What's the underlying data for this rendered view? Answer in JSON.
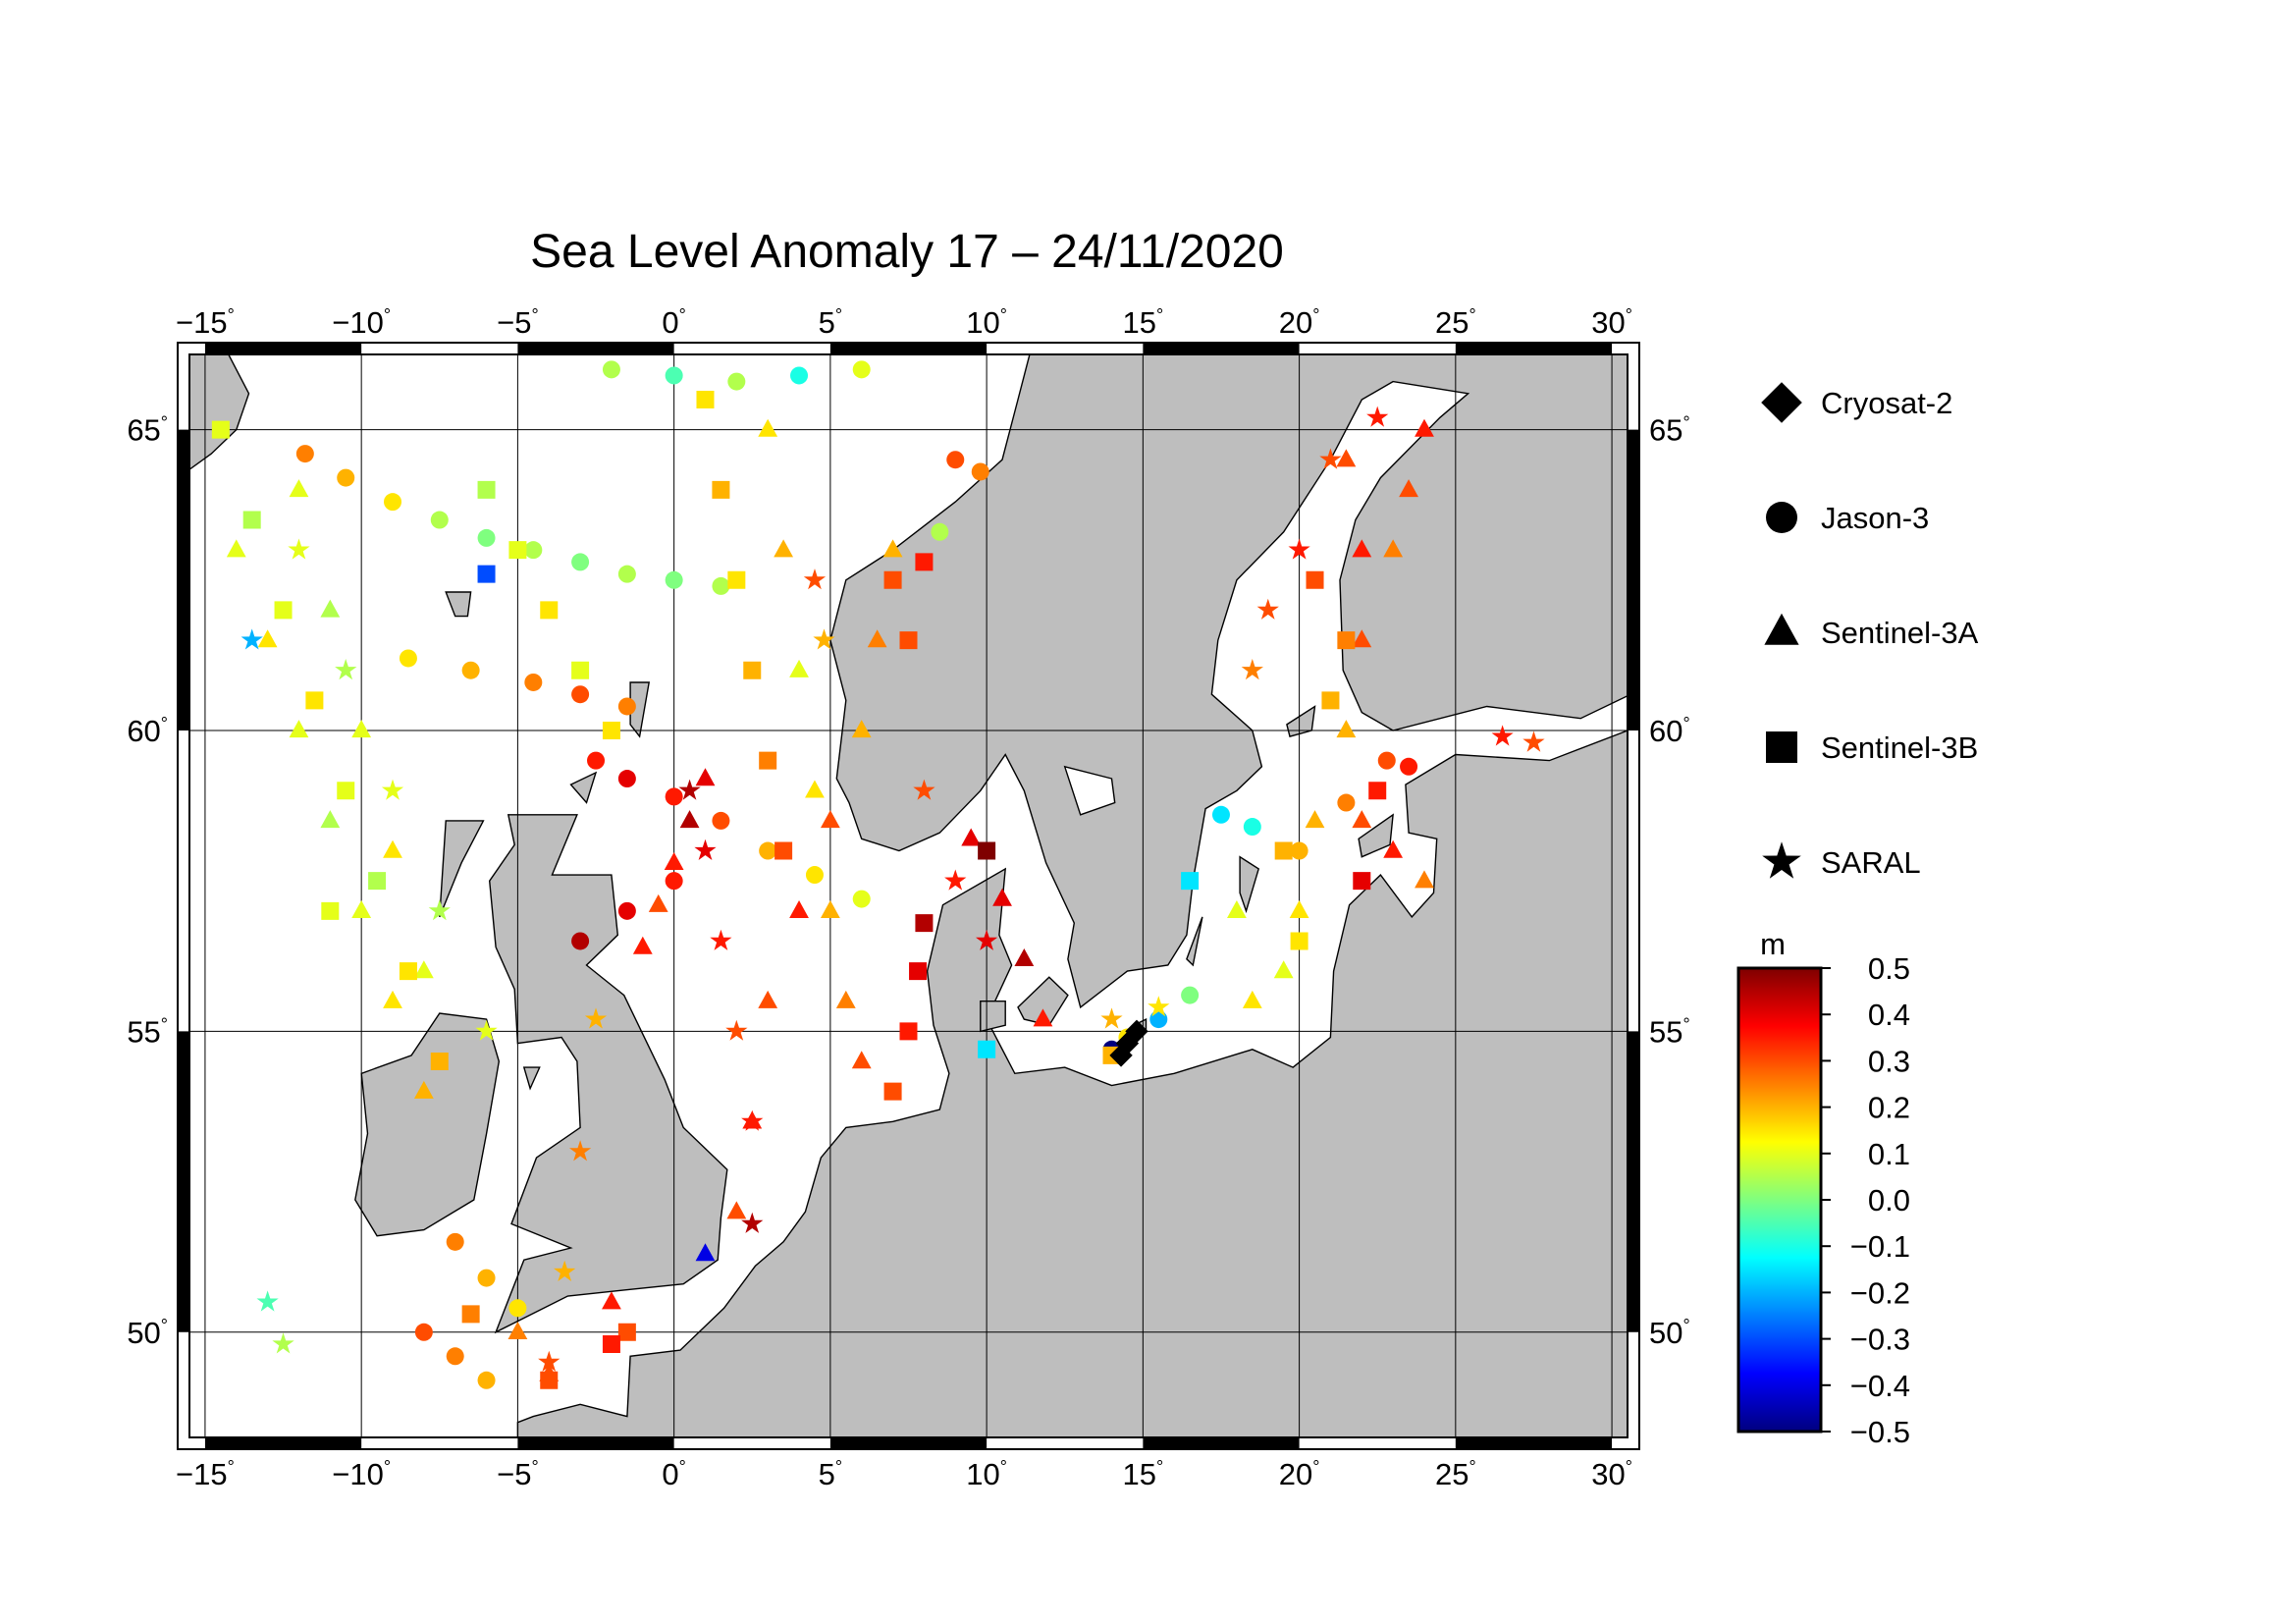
{
  "title": "Sea Level Anomaly 17 – 24/11/2020",
  "map": {
    "lon_range": [
      -15.5,
      30.5
    ],
    "lat_range": [
      48.25,
      66.25
    ],
    "lon_ticks": [
      {
        "value": -15,
        "label": "−15"
      },
      {
        "value": -10,
        "label": "−10"
      },
      {
        "value": -5,
        "label": "−5"
      },
      {
        "value": 0,
        "label": "0"
      },
      {
        "value": 5,
        "label": "5"
      },
      {
        "value": 10,
        "label": "10"
      },
      {
        "value": 15,
        "label": "15"
      },
      {
        "value": 20,
        "label": "20"
      },
      {
        "value": 25,
        "label": "25"
      },
      {
        "value": 30,
        "label": "30"
      }
    ],
    "lat_ticks": [
      {
        "value": 50,
        "label": "50"
      },
      {
        "value": 55,
        "label": "55"
      },
      {
        "value": 60,
        "label": "60"
      },
      {
        "value": 65,
        "label": "65"
      }
    ],
    "degree_symbol": "°",
    "land_color": "#bebebe",
    "sea_color": "#ffffff",
    "grid": true
  },
  "legend": {
    "items": [
      {
        "label": "Cryosat-2",
        "marker": "diamond"
      },
      {
        "label": "Jason-3",
        "marker": "circle"
      },
      {
        "label": "Sentinel-3A",
        "marker": "triangle"
      },
      {
        "label": "Sentinel-3B",
        "marker": "square"
      },
      {
        "label": "SARAL",
        "marker": "star"
      }
    ]
  },
  "colorbar": {
    "unit": "m",
    "min": -0.5,
    "max": 0.5,
    "ticks": [
      "0.5",
      "0.4",
      "0.3",
      "0.2",
      "0.1",
      "0.0",
      "−0.1",
      "−0.2",
      "−0.3",
      "−0.4",
      "−0.5"
    ],
    "colors": [
      "#00007f",
      "#0000ff",
      "#007fff",
      "#00ffff",
      "#7fff7f",
      "#ffff00",
      "#ff7f00",
      "#ff0000",
      "#7f0000"
    ]
  },
  "chart_data": {
    "type": "scatter",
    "x_label": "",
    "y_label": "",
    "series": [
      {
        "name": "Jason-3",
        "marker": "circle",
        "points": [
          [
            -11.8,
            64.6,
            0.25
          ],
          [
            -10.5,
            64.2,
            0.2
          ],
          [
            -9,
            63.8,
            0.15
          ],
          [
            -7.5,
            63.5,
            0.05
          ],
          [
            -6,
            63.2,
            0.0
          ],
          [
            -4.5,
            63.0,
            0.05
          ],
          [
            -3,
            62.8,
            0.0
          ],
          [
            -1.5,
            62.6,
            0.05
          ],
          [
            0,
            62.5,
            0.0
          ],
          [
            1.5,
            62.4,
            0.05
          ],
          [
            -8.5,
            61.2,
            0.15
          ],
          [
            -6.5,
            61.0,
            0.2
          ],
          [
            -4.5,
            60.8,
            0.25
          ],
          [
            -3,
            60.6,
            0.3
          ],
          [
            -1.5,
            60.4,
            0.25
          ],
          [
            -2.5,
            59.5,
            0.35
          ],
          [
            -1.5,
            59.2,
            0.4
          ],
          [
            0,
            58.9,
            0.35
          ],
          [
            1.5,
            58.5,
            0.3
          ],
          [
            3,
            58.0,
            0.2
          ],
          [
            4.5,
            57.6,
            0.15
          ],
          [
            6,
            57.2,
            0.1
          ],
          [
            -3,
            56.5,
            0.45
          ],
          [
            -1.5,
            57.0,
            0.4
          ],
          [
            0,
            57.5,
            0.35
          ],
          [
            -7,
            51.5,
            0.25
          ],
          [
            -6,
            50.9,
            0.2
          ],
          [
            -5,
            50.4,
            0.15
          ],
          [
            -8,
            50.0,
            0.3
          ],
          [
            -7,
            49.6,
            0.25
          ],
          [
            -6,
            49.2,
            0.2
          ],
          [
            9,
            64.5,
            0.3
          ],
          [
            9.8,
            64.3,
            0.25
          ],
          [
            8.5,
            63.3,
            0.05
          ],
          [
            17.5,
            58.6,
            -0.15
          ],
          [
            18.5,
            58.4,
            -0.1
          ],
          [
            20,
            58.0,
            0.2
          ],
          [
            21.5,
            58.8,
            0.25
          ],
          [
            22.8,
            59.5,
            0.3
          ],
          [
            23.5,
            59.4,
            0.35
          ],
          [
            14,
            54.7,
            -0.5
          ],
          [
            14.5,
            54.9,
            0.15
          ],
          [
            15.5,
            55.2,
            -0.2
          ],
          [
            16.5,
            55.6,
            0.0
          ],
          [
            -2,
            66.0,
            0.05
          ],
          [
            0,
            65.9,
            -0.05
          ],
          [
            2,
            65.8,
            0.05
          ],
          [
            4,
            65.9,
            -0.1
          ],
          [
            6,
            66.0,
            0.1
          ]
        ]
      },
      {
        "name": "Sentinel-3A",
        "marker": "triangle",
        "points": [
          [
            -14,
            63,
            0.1
          ],
          [
            -13,
            61.5,
            0.15
          ],
          [
            -12,
            60,
            0.1
          ],
          [
            -11,
            58.5,
            0.05
          ],
          [
            -10,
            57,
            0.1
          ],
          [
            -9,
            55.5,
            0.15
          ],
          [
            -8,
            54,
            0.2
          ],
          [
            -12,
            64,
            0.1
          ],
          [
            -11,
            62,
            0.05
          ],
          [
            -10,
            60,
            0.1
          ],
          [
            -9,
            58,
            0.15
          ],
          [
            -8,
            56,
            0.1
          ],
          [
            3,
            65,
            0.15
          ],
          [
            3.5,
            63,
            0.2
          ],
          [
            4,
            61,
            0.1
          ],
          [
            4.5,
            59,
            0.15
          ],
          [
            5,
            57,
            0.2
          ],
          [
            5.5,
            55.5,
            0.25
          ],
          [
            6,
            54.5,
            0.3
          ],
          [
            7,
            63,
            0.2
          ],
          [
            6.5,
            61.5,
            0.25
          ],
          [
            6,
            60,
            0.2
          ],
          [
            5,
            58.5,
            0.3
          ],
          [
            4,
            57,
            0.35
          ],
          [
            3,
            55.5,
            0.3
          ],
          [
            2.5,
            53.5,
            0.35
          ],
          [
            2,
            52,
            0.3
          ],
          [
            1,
            59.2,
            0.4
          ],
          [
            0.5,
            58.5,
            0.45
          ],
          [
            0,
            57.8,
            0.35
          ],
          [
            -0.5,
            57.1,
            0.3
          ],
          [
            -1,
            56.4,
            0.35
          ],
          [
            9.5,
            58.2,
            0.4
          ],
          [
            10.5,
            57.2,
            0.4
          ],
          [
            11.2,
            56.2,
            0.45
          ],
          [
            11.8,
            55.2,
            0.35
          ],
          [
            21.5,
            64.5,
            0.3
          ],
          [
            22,
            63,
            0.35
          ],
          [
            22,
            61.5,
            0.3
          ],
          [
            21.5,
            60,
            0.2
          ],
          [
            20.5,
            58.5,
            0.2
          ],
          [
            20,
            57,
            0.15
          ],
          [
            19.5,
            56,
            0.1
          ],
          [
            24,
            65,
            0.35
          ],
          [
            23.5,
            64,
            0.3
          ],
          [
            23,
            63,
            0.25
          ],
          [
            18,
            57,
            0.1
          ],
          [
            18.5,
            55.5,
            0.15
          ],
          [
            22,
            58.5,
            0.3
          ],
          [
            23,
            58,
            0.35
          ],
          [
            24,
            57.5,
            0.25
          ],
          [
            -5,
            50,
            0.25
          ],
          [
            -4,
            49.3,
            0.3
          ],
          [
            -2,
            50.5,
            0.35
          ],
          [
            1,
            51.3,
            -0.4
          ]
        ]
      },
      {
        "name": "Sentinel-3B",
        "marker": "square",
        "points": [
          [
            -14.5,
            65,
            0.1
          ],
          [
            -13.5,
            63.5,
            0.05
          ],
          [
            -12.5,
            62,
            0.1
          ],
          [
            -11.5,
            60.5,
            0.15
          ],
          [
            -10.5,
            59,
            0.1
          ],
          [
            -9.5,
            57.5,
            0.05
          ],
          [
            -8.5,
            56,
            0.15
          ],
          [
            -7.5,
            54.5,
            0.2
          ],
          [
            -6,
            62.6,
            -0.3
          ],
          [
            -6,
            64,
            0.05
          ],
          [
            -5,
            63,
            0.1
          ],
          [
            -4,
            62,
            0.15
          ],
          [
            -3,
            61,
            0.1
          ],
          [
            -2,
            60,
            0.15
          ],
          [
            1,
            65.5,
            0.15
          ],
          [
            1.5,
            64,
            0.2
          ],
          [
            2,
            62.5,
            0.15
          ],
          [
            2.5,
            61,
            0.2
          ],
          [
            3,
            59.5,
            0.25
          ],
          [
            3.5,
            58,
            0.3
          ],
          [
            7,
            62.5,
            0.3
          ],
          [
            8,
            62.8,
            0.35
          ],
          [
            7.5,
            61.5,
            0.3
          ],
          [
            8,
            56.8,
            0.45
          ],
          [
            7.8,
            56,
            0.4
          ],
          [
            7.5,
            55,
            0.35
          ],
          [
            7,
            54,
            0.3
          ],
          [
            10,
            58,
            0.5
          ],
          [
            -11,
            57,
            0.1
          ],
          [
            21.5,
            61.5,
            0.25
          ],
          [
            20.5,
            62.5,
            0.3
          ],
          [
            21,
            60.5,
            0.2
          ],
          [
            19.5,
            58,
            0.2
          ],
          [
            20,
            56.5,
            0.15
          ],
          [
            22,
            57.5,
            0.4
          ],
          [
            22.5,
            59,
            0.35
          ],
          [
            16.5,
            57.5,
            -0.15
          ],
          [
            -6.5,
            50.3,
            0.25
          ],
          [
            -4,
            49.2,
            0.3
          ],
          [
            -1.5,
            50,
            0.3
          ],
          [
            -2,
            49.8,
            0.35
          ],
          [
            10,
            54.7,
            -0.15
          ],
          [
            14,
            54.6,
            0.2
          ]
        ]
      },
      {
        "name": "SARAL",
        "marker": "star",
        "points": [
          [
            -13.5,
            61.5,
            -0.2
          ],
          [
            -12,
            63,
            0.1
          ],
          [
            -10.5,
            61,
            0.05
          ],
          [
            -9,
            59,
            0.1
          ],
          [
            -7.5,
            57,
            0.05
          ],
          [
            -6,
            55,
            0.1
          ],
          [
            0.5,
            59,
            0.45
          ],
          [
            1,
            58,
            0.4
          ],
          [
            1.5,
            56.5,
            0.35
          ],
          [
            2,
            55,
            0.3
          ],
          [
            2.5,
            53.5,
            0.35
          ],
          [
            2.5,
            51.8,
            0.45
          ],
          [
            4.5,
            62.5,
            0.3
          ],
          [
            4.8,
            61.5,
            0.2
          ],
          [
            8,
            59,
            0.3
          ],
          [
            9,
            57.5,
            0.35
          ],
          [
            10,
            56.5,
            0.4
          ],
          [
            18.5,
            61,
            0.25
          ],
          [
            19,
            62,
            0.3
          ],
          [
            20,
            63,
            0.35
          ],
          [
            21,
            64.5,
            0.3
          ],
          [
            22.5,
            65.2,
            0.35
          ],
          [
            -2.5,
            55.2,
            0.2
          ],
          [
            -3,
            53,
            0.25
          ],
          [
            -3.5,
            51,
            0.2
          ],
          [
            -4,
            49.5,
            0.3
          ],
          [
            14,
            55.2,
            0.2
          ],
          [
            15.5,
            55.4,
            0.15
          ],
          [
            26.5,
            59.9,
            0.35
          ],
          [
            27.5,
            59.8,
            0.3
          ],
          [
            -13,
            50.5,
            -0.05
          ],
          [
            -12.5,
            49.8,
            0.05
          ]
        ]
      },
      {
        "name": "Cryosat-2",
        "marker": "diamond",
        "points": [
          [
            14.3,
            54.6,
            0.1
          ],
          [
            14.5,
            54.8,
            0.15
          ],
          [
            14.8,
            55.0,
            0.1
          ]
        ]
      }
    ]
  }
}
